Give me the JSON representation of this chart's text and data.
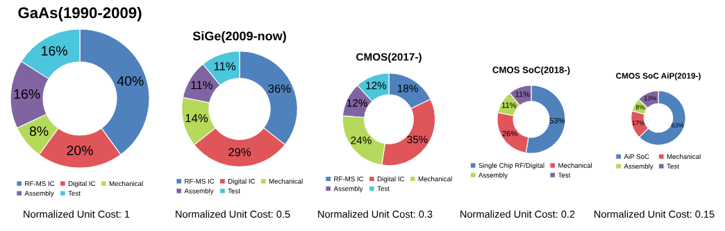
{
  "chart_data": [
    {
      "type": "donut",
      "title": "GaAs(1990-2009)",
      "categories": [
        "RF-MS IC",
        "Digital IC",
        "Mechanical",
        "Assembly",
        "Test"
      ],
      "values": [
        40,
        20,
        8,
        16,
        16
      ],
      "value_labels": [
        "40%",
        "20%",
        "8%",
        "16%",
        "16%"
      ],
      "colors": [
        "#4f81bd",
        "#e0555a",
        "#b5d95a",
        "#8064a2",
        "#4bc6dc"
      ],
      "legend": "bottom",
      "annotations": [
        "Normalized Unit Cost: 1"
      ]
    },
    {
      "type": "donut",
      "title": "SiGe(2009-now)",
      "categories": [
        "RF-MS IC",
        "Digital IC",
        "Mechanical",
        "Assembly",
        "Test"
      ],
      "values": [
        36,
        29,
        14,
        11,
        11
      ],
      "value_labels": [
        "36%",
        "29%",
        "14%",
        "11%",
        "11%"
      ],
      "colors": [
        "#4f81bd",
        "#e0555a",
        "#b5d95a",
        "#8064a2",
        "#4bc6dc"
      ],
      "legend": "bottom",
      "annotations": [
        "Normalized Unit Cost: 0.5"
      ]
    },
    {
      "type": "donut",
      "title": "CMOS(2017-)",
      "categories": [
        "RF-MS IC",
        "Digital IC",
        "Mechanical",
        "Assembly",
        "Test"
      ],
      "values": [
        18,
        35,
        24,
        12,
        12
      ],
      "value_labels": [
        "18%",
        "35%",
        "24%",
        "12%",
        "12%"
      ],
      "colors": [
        "#4f81bd",
        "#e0555a",
        "#b5d95a",
        "#8064a2",
        "#4bc6dc"
      ],
      "legend": "bottom",
      "annotations": [
        "Normalized Unit Cost: 0.3"
      ]
    },
    {
      "type": "donut",
      "title": "CMOS SoC(2018-)",
      "categories": [
        "Single Chip RF/Digital",
        "Mechanical",
        "Assembly",
        "Test"
      ],
      "values": [
        53,
        26,
        11,
        11
      ],
      "value_labels": [
        "53%",
        "26%",
        "11%",
        "11%"
      ],
      "colors": [
        "#4f81bd",
        "#e0555a",
        "#b5d95a",
        "#8064a2"
      ],
      "legend": "bottom",
      "annotations": [
        "Normalized Unit Cost: 0.2"
      ]
    },
    {
      "type": "donut",
      "title": "CMOS SoC AiP(2019-)",
      "categories": [
        "AiP SoC",
        "Mechanical",
        "Assembly",
        "Test"
      ],
      "values": [
        63,
        17,
        8,
        13
      ],
      "value_labels": [
        "63%",
        "17%",
        "8%",
        "13%"
      ],
      "colors": [
        "#4f81bd",
        "#e0555a",
        "#b5d95a",
        "#8064a2"
      ],
      "legend": "bottom",
      "annotations": [
        "Normalized Unit Cost: 0.15"
      ]
    }
  ]
}
